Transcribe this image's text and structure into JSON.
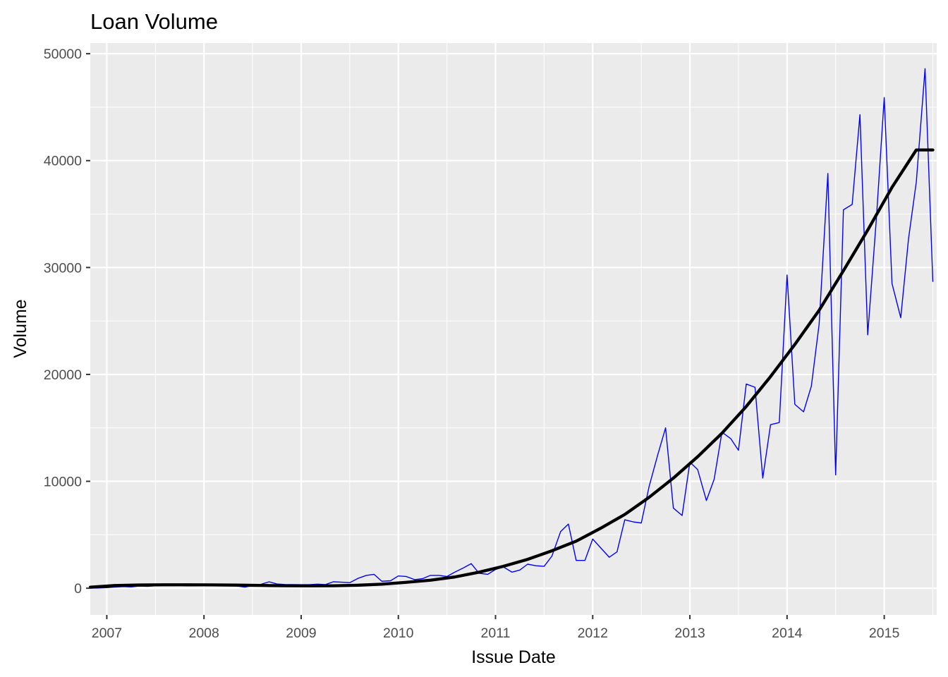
{
  "chart_data": {
    "type": "line",
    "title": "Loan Volume",
    "xlabel": "Issue Date",
    "ylabel": "Volume",
    "xlim": [
      2006.83,
      2015.54
    ],
    "ylim": [
      -2500,
      51000
    ],
    "x_ticks": [
      2007,
      2008,
      2009,
      2010,
      2011,
      2012,
      2013,
      2014,
      2015
    ],
    "x_tick_labels": [
      "2007",
      "2008",
      "2009",
      "2010",
      "2011",
      "2012",
      "2013",
      "2014",
      "2015"
    ],
    "y_ticks": [
      0,
      10000,
      20000,
      30000,
      40000,
      50000
    ],
    "y_tick_labels": [
      "0",
      "10000",
      "20000",
      "30000",
      "40000",
      "50000"
    ],
    "y_minor_ticks": [
      5000,
      15000,
      25000,
      35000,
      45000
    ],
    "x_minor_ticks": [
      2007.5,
      2008.5,
      2009.5,
      2010.5,
      2011.5,
      2012.5,
      2013.5,
      2014.5,
      2015.5
    ],
    "grid": true,
    "panel_background": "#EBEBEB",
    "series": [
      {
        "kind": "line",
        "color": "#0000FF",
        "x": [
          2006.83,
          2006.92,
          2007.0,
          2007.08,
          2007.17,
          2007.25,
          2007.33,
          2007.42,
          2007.5,
          2007.58,
          2007.67,
          2007.75,
          2007.83,
          2007.92,
          2008.0,
          2008.08,
          2008.17,
          2008.25,
          2008.33,
          2008.42,
          2008.5,
          2008.58,
          2008.67,
          2008.75,
          2008.83,
          2008.92,
          2009.0,
          2009.08,
          2009.17,
          2009.25,
          2009.33,
          2009.42,
          2009.5,
          2009.58,
          2009.67,
          2009.75,
          2009.83,
          2009.92,
          2010.0,
          2010.08,
          2010.17,
          2010.25,
          2010.33,
          2010.42,
          2010.5,
          2010.58,
          2010.67,
          2010.75,
          2010.83,
          2010.92,
          2011.0,
          2011.08,
          2011.17,
          2011.25,
          2011.33,
          2011.42,
          2011.5,
          2011.58,
          2011.67,
          2011.75,
          2011.83,
          2011.92,
          2012.0,
          2012.08,
          2012.17,
          2012.25,
          2012.33,
          2012.42,
          2012.5,
          2012.58,
          2012.67,
          2012.75,
          2012.83,
          2012.92,
          2013.0,
          2013.08,
          2013.17,
          2013.25,
          2013.33,
          2013.42,
          2013.5,
          2013.58,
          2013.67,
          2013.75,
          2013.83,
          2013.92,
          2014.0,
          2014.08,
          2014.17,
          2014.25,
          2014.33,
          2014.42,
          2014.5,
          2014.58,
          2014.67,
          2014.75,
          2014.83,
          2014.92,
          2015.0,
          2015.08,
          2015.17,
          2015.25,
          2015.33,
          2015.42,
          2015.5
        ],
        "y": [
          0,
          20,
          50,
          100,
          150,
          120,
          200,
          180,
          230,
          250,
          240,
          260,
          220,
          230,
          270,
          300,
          250,
          230,
          220,
          100,
          250,
          350,
          600,
          400,
          350,
          340,
          330,
          330,
          380,
          340,
          600,
          560,
          520,
          900,
          1200,
          1300,
          650,
          700,
          1150,
          1100,
          800,
          900,
          1200,
          1200,
          1100,
          1500,
          1900,
          2300,
          1400,
          1300,
          1750,
          2000,
          1500,
          1700,
          2250,
          2100,
          2050,
          3000,
          5300,
          6000,
          2600,
          2600,
          4600,
          3800,
          2900,
          3400,
          6400,
          6200,
          6100,
          9500,
          12500,
          15000,
          7500,
          6800,
          11800,
          11100,
          8200,
          10200,
          14600,
          14000,
          12900,
          19100,
          18800,
          10300,
          15300,
          15500,
          29300,
          17200,
          16500,
          18900,
          24700,
          38800,
          10600,
          35400,
          35900,
          44300,
          23700,
          34700,
          45900,
          28500,
          25300,
          32700,
          38000,
          48600,
          28700
        ]
      },
      {
        "kind": "smooth",
        "color": "#000000",
        "x": [
          2006.83,
          2007.08,
          2007.33,
          2007.58,
          2007.83,
          2008.08,
          2008.33,
          2008.58,
          2008.83,
          2009.08,
          2009.33,
          2009.58,
          2009.83,
          2010.08,
          2010.33,
          2010.58,
          2010.83,
          2011.08,
          2011.33,
          2011.58,
          2011.83,
          2012.08,
          2012.33,
          2012.58,
          2012.83,
          2013.08,
          2013.33,
          2013.58,
          2013.83,
          2014.08,
          2014.33,
          2014.58,
          2014.83,
          2015.08,
          2015.33,
          2015.5
        ],
        "y": [
          100,
          250,
          300,
          320,
          320,
          310,
          290,
          260,
          230,
          220,
          230,
          280,
          380,
          550,
          750,
          1050,
          1500,
          2050,
          2700,
          3500,
          4400,
          5600,
          6900,
          8500,
          10300,
          12300,
          14500,
          17000,
          19800,
          22800,
          26000,
          29700,
          33500,
          37500,
          41000,
          41000
        ]
      }
    ]
  }
}
